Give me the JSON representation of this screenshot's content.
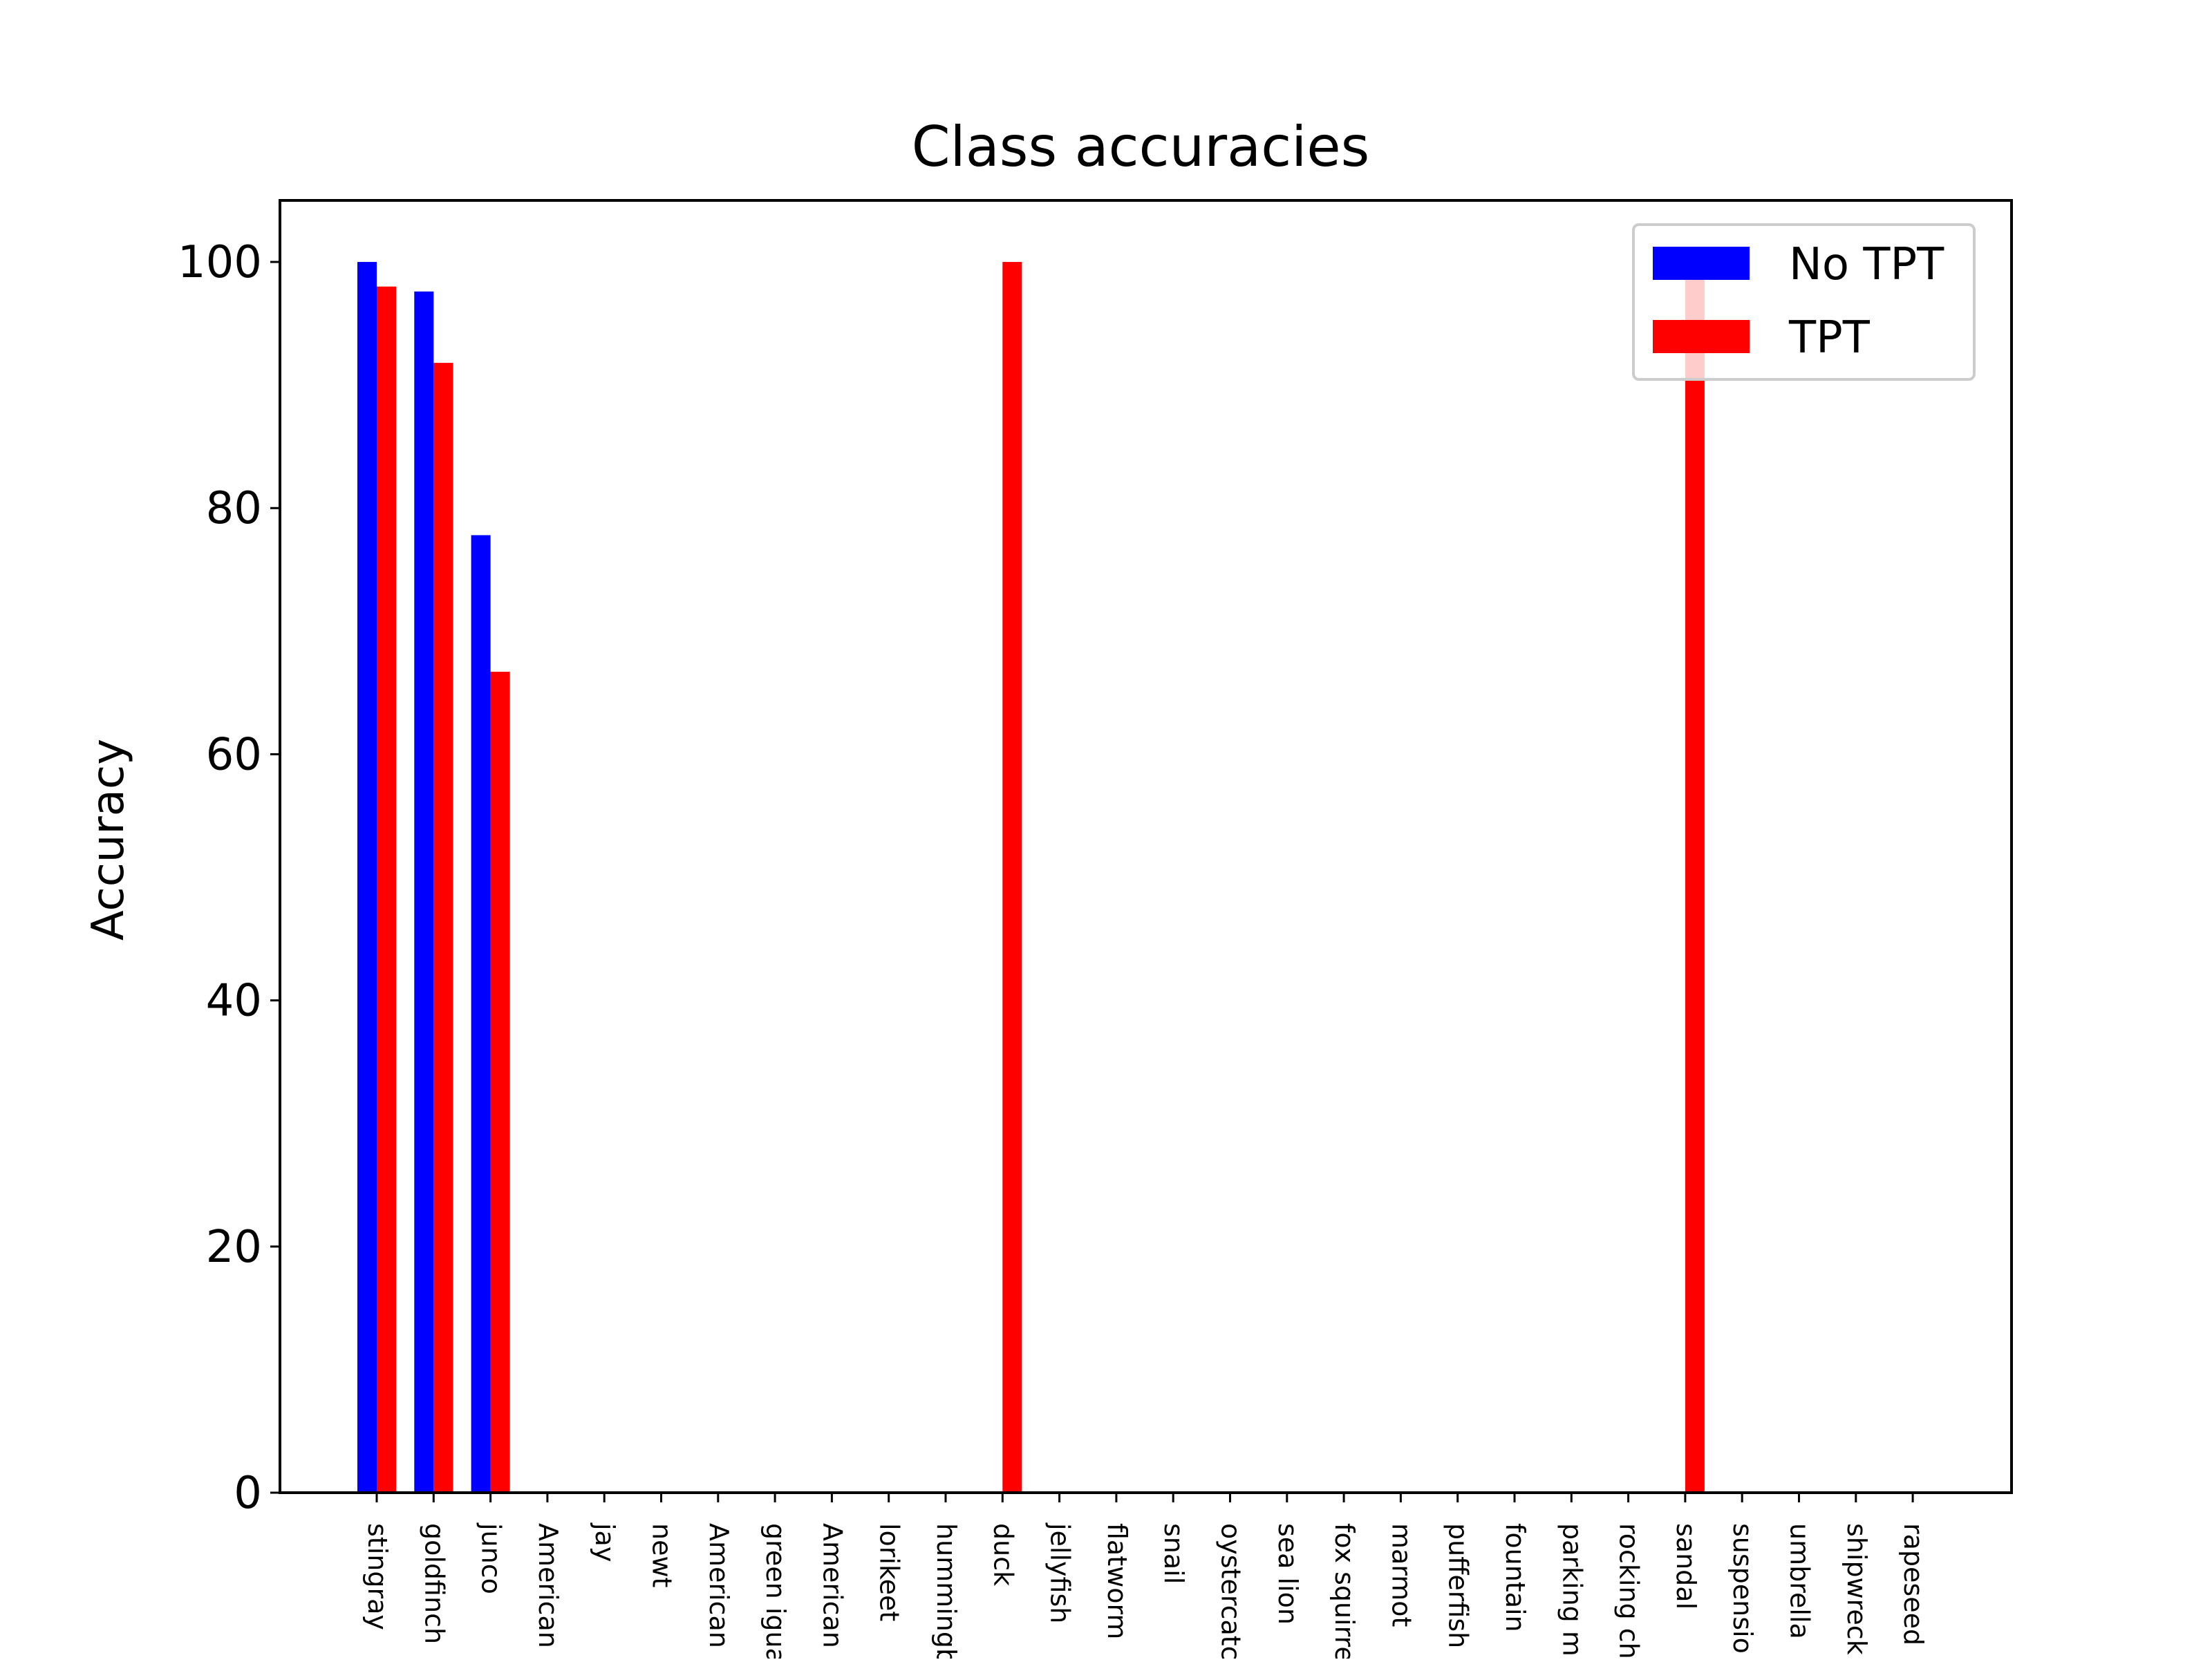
{
  "chart_data": {
    "type": "bar",
    "title": "Class accuracies",
    "xlabel": "",
    "ylabel": "Accuracy",
    "ylim": [
      0,
      105
    ],
    "yticks": [
      0,
      20,
      40,
      60,
      80,
      100
    ],
    "grid": false,
    "legend_position": "top-right",
    "categories": [
      "stingray",
      "goldfinch",
      "junco",
      "American",
      "jay",
      "newt",
      "American",
      "green igua",
      "American",
      "lorikeet",
      "hummingb",
      "duck",
      "jellyfish",
      "flatworm",
      "snail",
      "oystercatc",
      "sea lion",
      "fox squirre",
      "marmot",
      "pufferfish",
      "fountain",
      "parking m",
      "rocking ch",
      "sandal",
      "suspensio",
      "umbrella",
      "shipwreck",
      "rapeseed"
    ],
    "series": [
      {
        "name": "No TPT",
        "color": "#0000ff",
        "values": [
          100,
          97.6,
          77.8,
          0,
          0,
          0,
          0,
          0,
          0,
          0,
          0,
          0,
          0,
          0,
          0,
          0,
          0,
          0,
          0,
          0,
          0,
          0,
          0,
          0,
          0,
          0,
          0,
          0
        ]
      },
      {
        "name": "TPT",
        "color": "#ff0000",
        "values": [
          98.0,
          91.8,
          66.7,
          0,
          0,
          0,
          0,
          0,
          0,
          0,
          0,
          100,
          0,
          0,
          0,
          0,
          0,
          0,
          0,
          0,
          0,
          0,
          0,
          100,
          0,
          0,
          0,
          0
        ]
      }
    ]
  }
}
